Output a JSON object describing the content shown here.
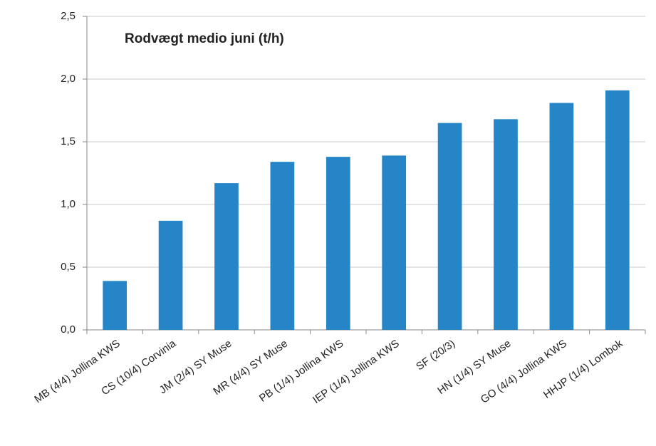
{
  "chart_data": {
    "type": "bar",
    "title": "Rodvægt medio juni (t/h)",
    "categories": [
      "MB (4/4) Jollina KWS",
      "CS (10/4) Corvinia",
      "JM (2/4) SY Muse",
      "MR (4/4) SY Muse",
      "PB (1/4) Jollina KWS",
      "IEP (1/4) Jollina KWS",
      "SF (20/3)",
      "HN (1/4) SY Muse",
      "GO (4/4) Jollina KWS",
      "HHJP (1/4) Lombok"
    ],
    "values": [
      0.39,
      0.87,
      1.17,
      1.34,
      1.38,
      1.39,
      1.65,
      1.68,
      1.81,
      1.91
    ],
    "color": "#2585c7",
    "ylim": [
      0,
      2.5
    ],
    "yticks": [
      {
        "value": 0,
        "label": "0,0"
      },
      {
        "value": 0.5,
        "label": "0,5"
      },
      {
        "value": 1,
        "label": "1,0"
      },
      {
        "value": 1.5,
        "label": "1,5"
      },
      {
        "value": 2,
        "label": "2,0"
      },
      {
        "value": 2.5,
        "label": "2,5"
      }
    ],
    "grid": true
  }
}
